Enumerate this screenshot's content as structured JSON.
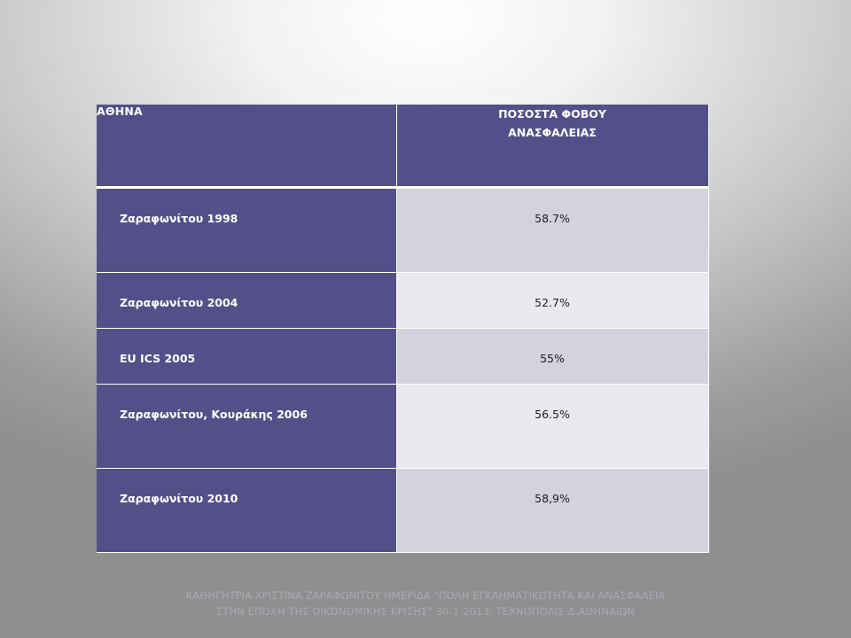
{
  "table": {
    "header": {
      "col1": "ΑΘΗΝΑ",
      "col2_line1": "ΠΟΣΟΣΤΑ ΦΟΒΟΥ",
      "col2_line2": "ΑΝΑΣΦΑΛΕΙΑΣ"
    },
    "rows": [
      {
        "label": "Ζαραφωνίτου 1998",
        "value": "58.7%"
      },
      {
        "label": "Ζαραφωνίτου  2004",
        "value": "52.7%"
      },
      {
        "label": "EU ICS 2005",
        "value": "55%"
      },
      {
        "label": "Ζαραφωνίτου, Κουράκης 2006",
        "value": "56.5%"
      },
      {
        "label": "Ζαραφωνίτου 2010",
        "value": "58,9%"
      }
    ]
  },
  "footer": {
    "line1": "ΚΑΘΗΓΗΤΡΙΑ ΧΡΙΣΤΙΝΑ ΖΑΡΑΦΩΝΙΤΟΥ ΗΜΕΡΙΔΑ \"ΠΟΛΗ ΕΓΚΛΗΜΑΤΙΚΟΤΗΤΑ ΚΑΙ ΑΝΑΣΦΑΛΕΙΑ",
    "line2": "ΣΤΗΝ ΕΠΟΧΗ ΤΗΣ ΟΙΚΟΝΟΜΙΚΗΣ ΚΡΙΣΗΣ\" 30-1-2013, ΤΕΧΝΟΠΟΛΙΣ-Δ.ΑΘΗΝΑΙΩΝ"
  },
  "colors": {
    "header_fill": "#535089",
    "value_fill_dark": "#d3d3de",
    "value_fill_light": "#e9e9ef"
  }
}
